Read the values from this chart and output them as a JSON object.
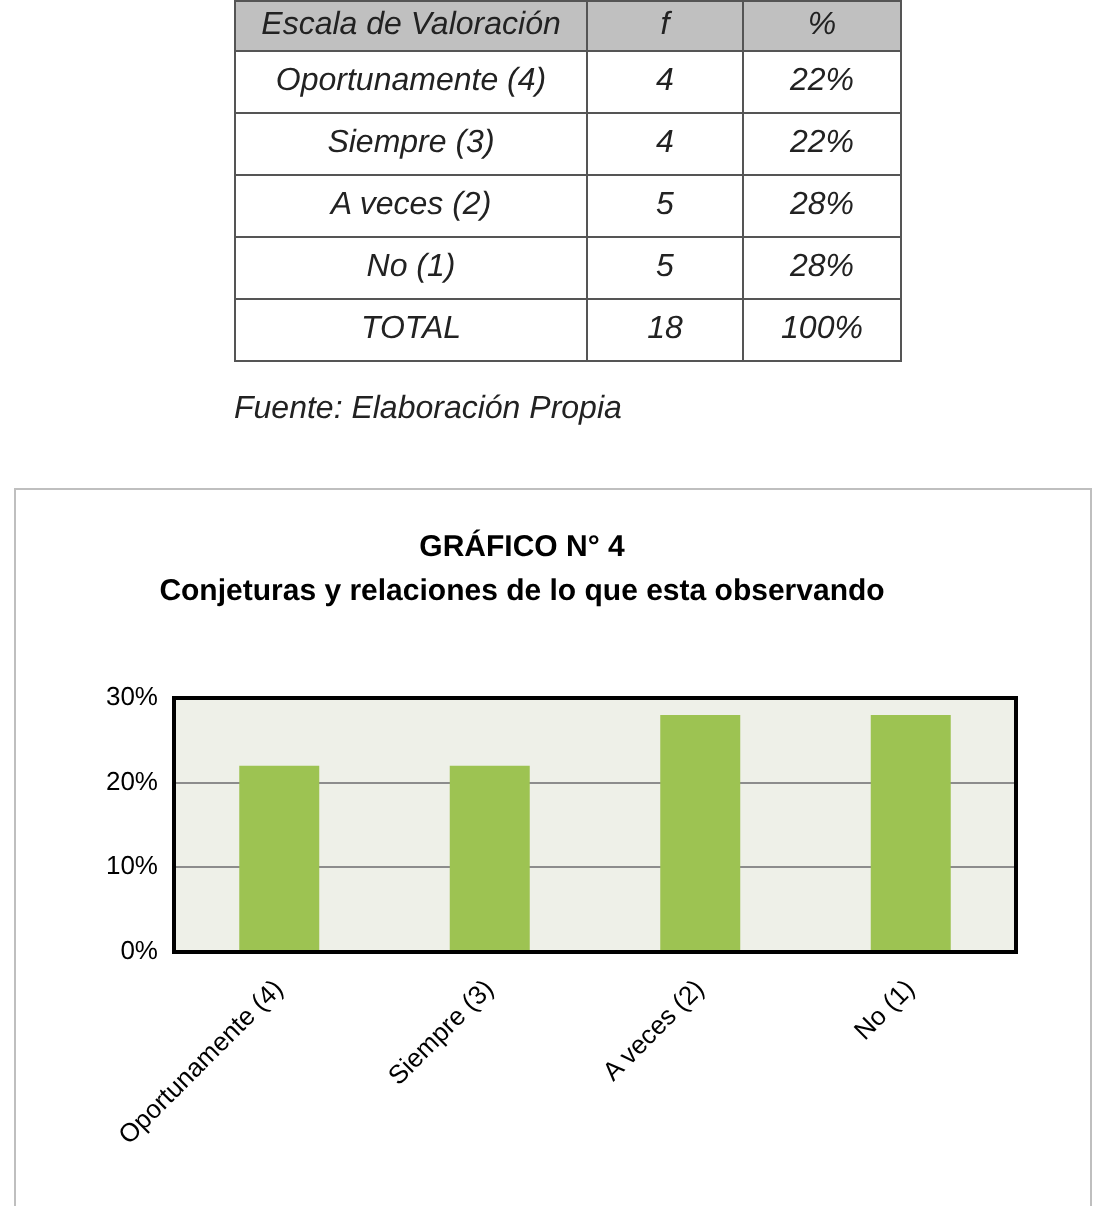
{
  "chart_data": [
    {
      "type": "other",
      "annotations": [
        "Escala de Valoración",
        "f",
        "%",
        "Oportunamente (4)",
        "4",
        "22%",
        "Siempre (3)",
        "4",
        "22%",
        "A veces (2)",
        "5",
        "28%",
        "No (1)",
        "5",
        "28%",
        "TOTAL",
        "18",
        "100%",
        "Fuente: Elaboración Propia"
      ]
    },
    {
      "type": "bar",
      "title": "GRÁFICO N° 4",
      "subtitle": "Conjeturas y relaciones de lo que esta observando",
      "categories": [
        "Oportunamente (4)",
        "Siempre (3)",
        "A veces (2)",
        "No (1)"
      ],
      "values": [
        22,
        22,
        28,
        28
      ],
      "color": "#9dc352",
      "ylim": [
        0,
        30
      ],
      "yticks": [
        {
          "value": 0,
          "label": "0%"
        },
        {
          "value": 10,
          "label": "10%"
        },
        {
          "value": 20,
          "label": "20%"
        },
        {
          "value": 30,
          "label": "30%"
        }
      ],
      "grid": "y"
    }
  ]
}
